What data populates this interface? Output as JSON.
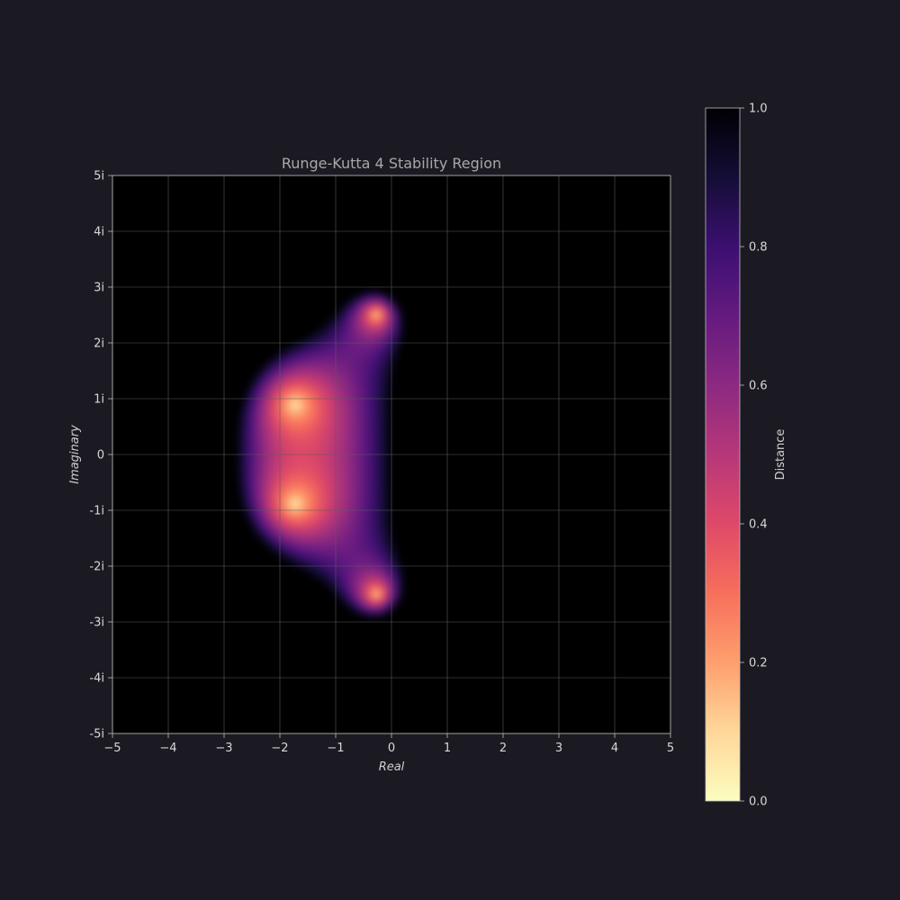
{
  "chart_data": {
    "type": "heatmap",
    "title": "Runge-Kutta 4 Stability Region",
    "xlabel": "Real",
    "ylabel": "Imaginary",
    "xlim": [
      -5,
      5
    ],
    "ylim": [
      -5,
      5
    ],
    "x_ticks": [
      -5,
      -4,
      -3,
      -2,
      -1,
      0,
      1,
      2,
      3,
      4,
      5
    ],
    "x_tick_labels": [
      "−5",
      "−4",
      "−3",
      "−2",
      "−1",
      "0",
      "1",
      "2",
      "3",
      "4",
      "5"
    ],
    "y_ticks": [
      5,
      4,
      3,
      2,
      1,
      0,
      -1,
      -2,
      -3,
      -4,
      -5
    ],
    "y_tick_labels": [
      "5i",
      "4i",
      "3i",
      "2i",
      "1i",
      "0",
      "-1i",
      "-2i",
      "-3i",
      "-4i",
      "-5i"
    ],
    "grid": true,
    "colormap": "magma_r",
    "colorbar": {
      "label": "Distance",
      "range": [
        0.0,
        1.0
      ],
      "ticks": [
        0.0,
        0.2,
        0.4,
        0.6,
        0.8,
        1.0
      ],
      "tick_labels": [
        "0.0",
        "0.2",
        "0.4",
        "0.6",
        "0.8",
        "1.0"
      ]
    },
    "bright_points": [
      {
        "re": -1.73,
        "im": 0.89
      },
      {
        "re": -1.73,
        "im": -0.89
      },
      {
        "re": -0.27,
        "im": 2.51
      },
      {
        "re": -0.27,
        "im": -2.51
      }
    ]
  },
  "colors": {
    "background": "#1b1a23",
    "plot_background": "#000000",
    "grid": "#5c5c5c",
    "axis": "#bdbdbd",
    "text": "#d8d8d8",
    "title": "#a8a8a8"
  }
}
